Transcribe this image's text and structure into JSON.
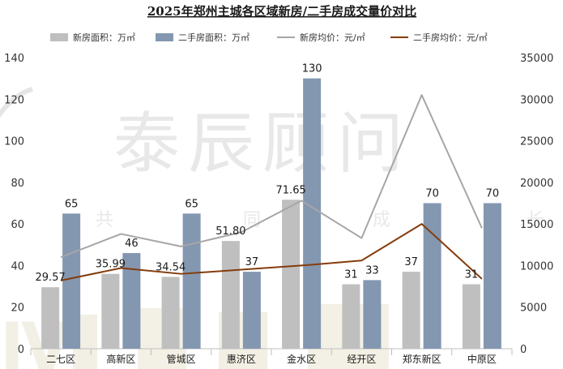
{
  "chart_data": {
    "type": "bar",
    "title": "2025年郑州主城各区域新房/二手房成交量价对比",
    "categories": [
      "二七区",
      "高新区",
      "管城区",
      "惠济区",
      "金水区",
      "经开区",
      "郑东新区",
      "中原区"
    ],
    "series": [
      {
        "name": "新房面积：万㎡",
        "type": "bar",
        "axis": "left",
        "color": "#bfbfbf",
        "values": [
          29.57,
          35.99,
          34.54,
          51.8,
          71.65,
          31,
          37,
          31
        ],
        "labels": [
          "29.57",
          "35.99",
          "34.54",
          "51.80",
          "71.65",
          "31",
          "37",
          "31"
        ]
      },
      {
        "name": "二手房面积：万㎡",
        "type": "bar",
        "axis": "left",
        "color": "#8497b0",
        "values": [
          65,
          46,
          65,
          37,
          130,
          33,
          70,
          70
        ],
        "labels": [
          "65",
          "46",
          "65",
          "37",
          "130",
          "33",
          "70",
          "70"
        ]
      },
      {
        "name": "新房均价：元/㎡",
        "type": "line",
        "axis": "right",
        "color": "#a6a6a6",
        "values": [
          11000,
          13800,
          12300,
          14000,
          17800,
          13300,
          30500,
          14500
        ]
      },
      {
        "name": "二手房均价：元/㎡",
        "type": "line",
        "axis": "right",
        "color": "#843c0c",
        "values": [
          8200,
          9700,
          9000,
          9500,
          10000,
          10600,
          15000,
          8400
        ]
      }
    ],
    "ylim_left": [
      0,
      140
    ],
    "yticks_left": [
      0,
      20,
      40,
      60,
      80,
      100,
      120,
      140
    ],
    "ylim_right": [
      0,
      35000
    ],
    "yticks_right": [
      0,
      5000,
      10000,
      15000,
      20000,
      25000,
      30000,
      35000
    ],
    "legend_position": "top",
    "grid": false
  },
  "watermark": {
    "brand": "泰辰顾问",
    "slogan": [
      "共",
      "同",
      "成",
      "长"
    ],
    "logo_text": "Ⅳ"
  }
}
